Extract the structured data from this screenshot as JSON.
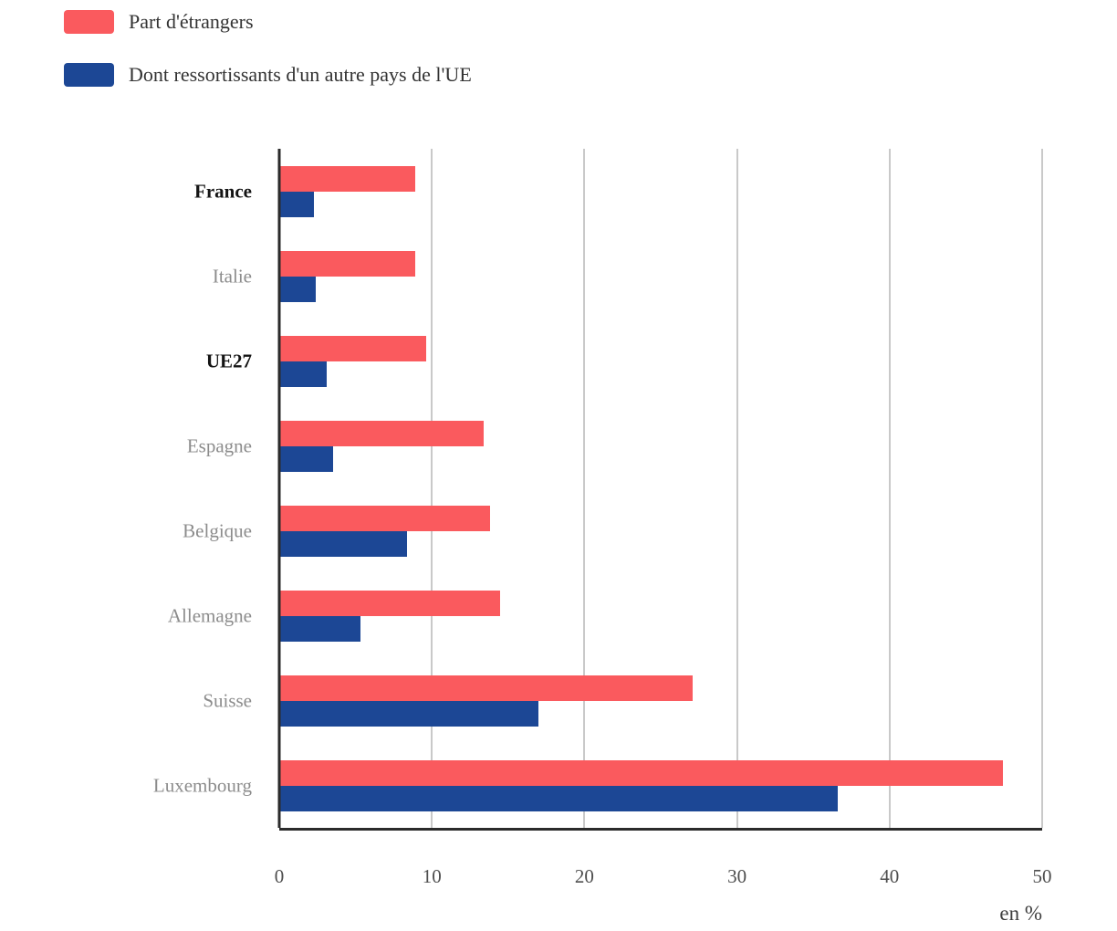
{
  "chart_data": {
    "type": "bar",
    "orientation": "horizontal",
    "categories": [
      "France",
      "Italie",
      "UE27",
      "Espagne",
      "Belgique",
      "Allemagne",
      "Suisse",
      "Luxembourg"
    ],
    "bold_categories": [
      "France",
      "UE27"
    ],
    "series": [
      {
        "name": "Part d'étrangers",
        "color": "#fa5a5e",
        "values": [
          8.9,
          8.9,
          9.6,
          13.4,
          13.8,
          14.5,
          27.1,
          47.4
        ]
      },
      {
        "name": "Dont ressortissants d'un autre pays de l'UE",
        "color": "#1c4795",
        "values": [
          2.3,
          2.4,
          3.1,
          3.5,
          8.4,
          5.3,
          17.0,
          36.6
        ]
      }
    ],
    "xlim": [
      0,
      50
    ],
    "xticks": [
      0,
      10,
      20,
      30,
      40,
      50
    ],
    "x_unit_label": "en %",
    "legend_position": "top-left",
    "grid": "vertical",
    "colors": {
      "axis": "#2b2b2b",
      "gridline": "#c9c9c9",
      "tick_text": "#4d4d4d",
      "category_text": "#8c8c8c",
      "category_text_bold": "#141414",
      "legend_text": "#333333",
      "background": "#ffffff"
    }
  }
}
